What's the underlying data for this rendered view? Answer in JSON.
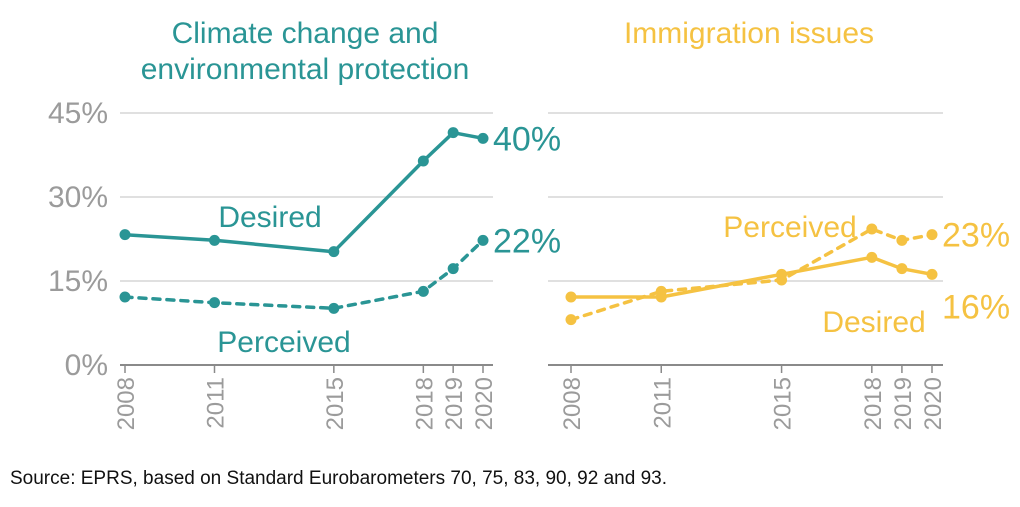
{
  "source": "Source: EPRS, based on Standard Eurobarometers 70, 75, 83, 90, 92 and 93.",
  "chart_data": [
    {
      "type": "line",
      "title": "Climate change and environmental protection",
      "title_lines": [
        "Climate change and",
        "environmental protection"
      ],
      "color": "#2a9595",
      "x": [
        2008,
        2011,
        2015,
        2018,
        2019,
        2020
      ],
      "x_tick_labels": [
        "2008",
        "2011",
        "2015",
        "2018",
        "2019",
        "2020"
      ],
      "y_tick_labels": [
        "45%",
        "30%",
        "15%",
        "0%"
      ],
      "y_ticks": [
        45,
        30,
        15,
        0
      ],
      "ylim": [
        0,
        45
      ],
      "grid": true,
      "series": [
        {
          "name": "Desired",
          "style": "solid",
          "values": [
            23,
            22,
            20,
            36,
            41,
            40
          ],
          "end_label": "40%"
        },
        {
          "name": "Perceived",
          "style": "dashed",
          "values": [
            12,
            11,
            10,
            13,
            17,
            22
          ],
          "end_label": "22%"
        }
      ]
    },
    {
      "type": "line",
      "title": "Immigration issues",
      "title_lines": [
        "Immigration issues"
      ],
      "color": "#f5c242",
      "x": [
        2008,
        2011,
        2015,
        2018,
        2019,
        2020
      ],
      "x_tick_labels": [
        "2008",
        "2011",
        "2015",
        "2018",
        "2019",
        "2020"
      ],
      "y_ticks": [
        45,
        30,
        15,
        0
      ],
      "ylim": [
        0,
        45
      ],
      "grid": true,
      "series": [
        {
          "name": "Desired",
          "style": "solid",
          "values": [
            12,
            12,
            16,
            19,
            17,
            16
          ],
          "end_label": "16%"
        },
        {
          "name": "Perceived",
          "style": "dashed",
          "values": [
            8,
            13,
            15,
            24,
            22,
            23
          ],
          "end_label": "23%"
        }
      ]
    }
  ]
}
